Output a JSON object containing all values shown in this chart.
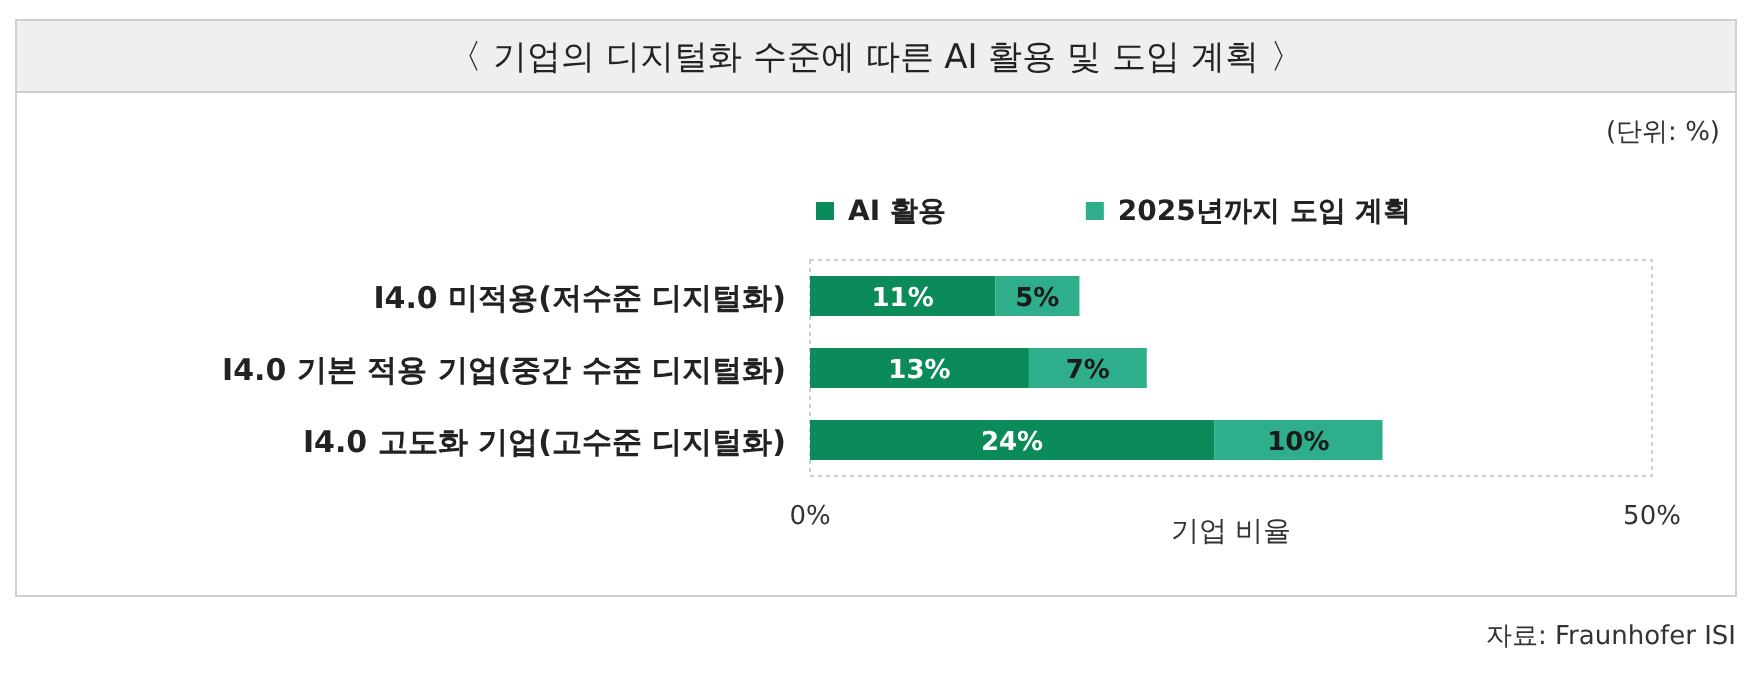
{
  "chart_data": {
    "type": "bar",
    "orientation": "horizontal",
    "stacked": true,
    "title": "〈 기업의 디지털화 수준에 따른 AI 활용 및 도입 계획 〉",
    "categories": [
      "I4.0 미적용(저수준 디지털화)",
      "I4.0 기본 적용 기업(중간 수준 디지털화)",
      "I4.0 고도화 기업(고수준 디지털화)"
    ],
    "series": [
      {
        "name": "AI 활용",
        "color": "#0b8a5a",
        "values": [
          11,
          13,
          24
        ],
        "value_labels": [
          "11%",
          "13%",
          "24%"
        ]
      },
      {
        "name": "2025년까지 도입 계획",
        "color": "#2fae8c",
        "values": [
          5,
          7,
          10
        ],
        "value_labels": [
          "5%",
          "7%",
          "10%"
        ]
      }
    ],
    "xlabel": "기업 비율",
    "xlim": [
      0,
      50
    ],
    "xticks": [
      {
        "value": 0,
        "label": "0%"
      },
      {
        "value": 50,
        "label": "50%"
      }
    ],
    "legend": "top",
    "annotations": [
      "(단위: %)",
      "자료: Fraunhofer ISI"
    ]
  }
}
